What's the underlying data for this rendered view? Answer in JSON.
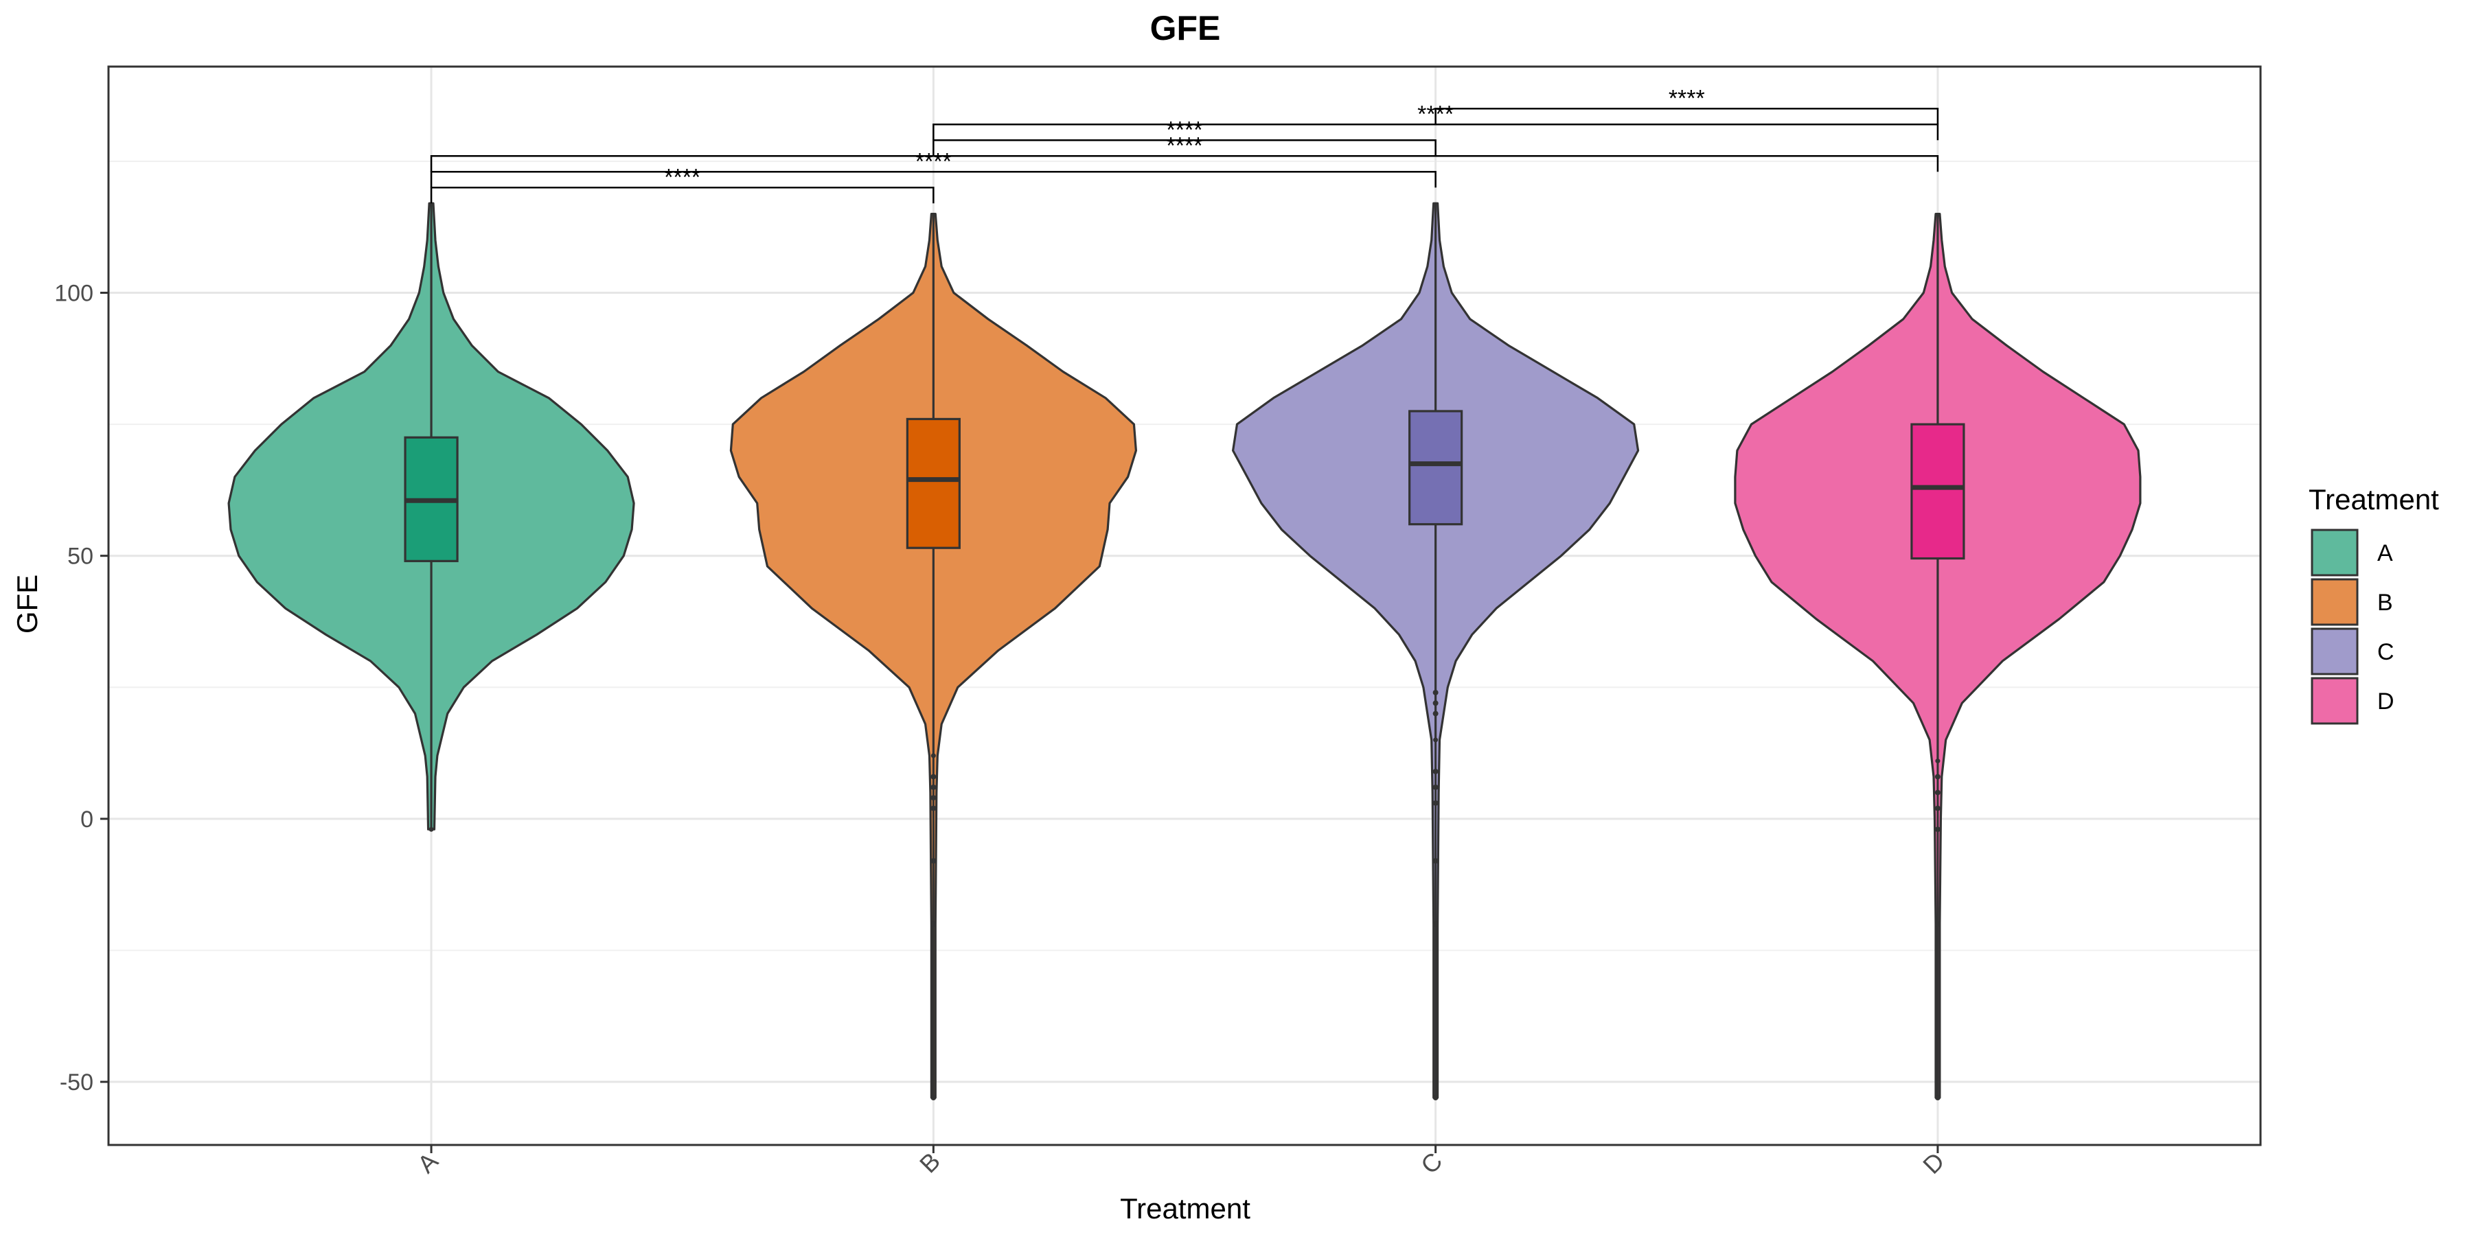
{
  "chart_data": {
    "type": "violin",
    "title": "GFE",
    "xlabel": "Treatment",
    "ylabel": "GFE",
    "ylim": [
      -62,
      143
    ],
    "y_ticks": [
      -50,
      0,
      50,
      100
    ],
    "y_tick_labels": [
      "-50",
      "0",
      "50",
      "100"
    ],
    "grid": true,
    "legend": {
      "title": "Treatment",
      "placement": "right"
    },
    "categories": [
      "A",
      "B",
      "C",
      "D"
    ],
    "colors": {
      "A": {
        "violin": "#5FBA9D",
        "box": "#1B9E77"
      },
      "B": {
        "violin": "#E58E4D",
        "box": "#D95F02"
      },
      "C": {
        "violin": "#A09BCB",
        "box": "#7570B3"
      },
      "D": {
        "violin": "#EE6BA8",
        "box": "#E7298A"
      }
    },
    "series": [
      {
        "name": "A",
        "box": {
          "q1": 49,
          "median": 60.5,
          "q3": 72.5
        },
        "whisker": [
          -2,
          117
        ],
        "outliers": [],
        "density_profile": [
          [
            -2,
            0.015
          ],
          [
            8,
            0.02
          ],
          [
            12,
            0.03
          ],
          [
            20,
            0.08
          ],
          [
            25,
            0.16
          ],
          [
            30,
            0.3
          ],
          [
            35,
            0.52
          ],
          [
            40,
            0.72
          ],
          [
            45,
            0.86
          ],
          [
            50,
            0.95
          ],
          [
            55,
            0.99
          ],
          [
            60,
            1.0
          ],
          [
            65,
            0.97
          ],
          [
            70,
            0.87
          ],
          [
            75,
            0.74
          ],
          [
            80,
            0.58
          ],
          [
            85,
            0.33
          ],
          [
            90,
            0.2
          ],
          [
            95,
            0.11
          ],
          [
            100,
            0.06
          ],
          [
            105,
            0.035
          ],
          [
            110,
            0.02
          ],
          [
            117,
            0.01
          ]
        ]
      },
      {
        "name": "B",
        "box": {
          "q1": 51.5,
          "median": 64.5,
          "q3": 76
        },
        "whisker": [
          12,
          115
        ],
        "outliers": [
          -53,
          -20,
          -8,
          2,
          4,
          6,
          8
        ],
        "density_profile": [
          [
            -53,
            0.01
          ],
          [
            -20,
            0.01
          ],
          [
            5,
            0.015
          ],
          [
            12,
            0.02
          ],
          [
            18,
            0.04
          ],
          [
            25,
            0.12
          ],
          [
            32,
            0.32
          ],
          [
            40,
            0.6
          ],
          [
            48,
            0.82
          ],
          [
            55,
            0.86
          ],
          [
            60,
            0.87
          ],
          [
            65,
            0.96
          ],
          [
            70,
            1.0
          ],
          [
            75,
            0.99
          ],
          [
            80,
            0.85
          ],
          [
            85,
            0.64
          ],
          [
            90,
            0.46
          ],
          [
            95,
            0.27
          ],
          [
            100,
            0.1
          ],
          [
            105,
            0.04
          ],
          [
            110,
            0.02
          ],
          [
            115,
            0.01
          ]
        ]
      },
      {
        "name": "C",
        "box": {
          "q1": 56,
          "median": 67.5,
          "q3": 77.5
        },
        "whisker": [
          15,
          117
        ],
        "outliers": [
          -53,
          -20,
          -8,
          3,
          6,
          9,
          20,
          22,
          24
        ],
        "density_profile": [
          [
            -53,
            0.01
          ],
          [
            -20,
            0.01
          ],
          [
            5,
            0.015
          ],
          [
            15,
            0.02
          ],
          [
            20,
            0.04
          ],
          [
            25,
            0.06
          ],
          [
            30,
            0.1
          ],
          [
            35,
            0.18
          ],
          [
            40,
            0.3
          ],
          [
            45,
            0.46
          ],
          [
            50,
            0.62
          ],
          [
            55,
            0.76
          ],
          [
            60,
            0.86
          ],
          [
            65,
            0.93
          ],
          [
            70,
            1.0
          ],
          [
            75,
            0.98
          ],
          [
            80,
            0.8
          ],
          [
            85,
            0.58
          ],
          [
            90,
            0.36
          ],
          [
            95,
            0.17
          ],
          [
            100,
            0.08
          ],
          [
            105,
            0.04
          ],
          [
            110,
            0.02
          ],
          [
            117,
            0.01
          ]
        ]
      },
      {
        "name": "D",
        "box": {
          "q1": 49.5,
          "median": 63,
          "q3": 75
        },
        "whisker": [
          11,
          115
        ],
        "outliers": [
          -53,
          -20,
          -2,
          2,
          5,
          8
        ],
        "density_profile": [
          [
            -53,
            0.01
          ],
          [
            -20,
            0.01
          ],
          [
            0,
            0.015
          ],
          [
            8,
            0.02
          ],
          [
            15,
            0.04
          ],
          [
            22,
            0.12
          ],
          [
            30,
            0.32
          ],
          [
            38,
            0.6
          ],
          [
            45,
            0.82
          ],
          [
            50,
            0.9
          ],
          [
            55,
            0.96
          ],
          [
            60,
            1.0
          ],
          [
            65,
            1.0
          ],
          [
            70,
            0.99
          ],
          [
            75,
            0.92
          ],
          [
            80,
            0.72
          ],
          [
            85,
            0.52
          ],
          [
            90,
            0.34
          ],
          [
            95,
            0.17
          ],
          [
            100,
            0.07
          ],
          [
            105,
            0.035
          ],
          [
            110,
            0.02
          ],
          [
            115,
            0.01
          ]
        ]
      }
    ],
    "comparisons": [
      {
        "group1": "A",
        "group2": "B",
        "label": "****",
        "y": 120
      },
      {
        "group1": "A",
        "group2": "C",
        "label": "****",
        "y": 123
      },
      {
        "group1": "A",
        "group2": "D",
        "label": "****",
        "y": 126
      },
      {
        "group1": "B",
        "group2": "C",
        "label": "****",
        "y": 129
      },
      {
        "group1": "B",
        "group2": "D",
        "label": "****",
        "y": 132
      },
      {
        "group1": "C",
        "group2": "D",
        "label": "****",
        "y": 135
      }
    ]
  }
}
